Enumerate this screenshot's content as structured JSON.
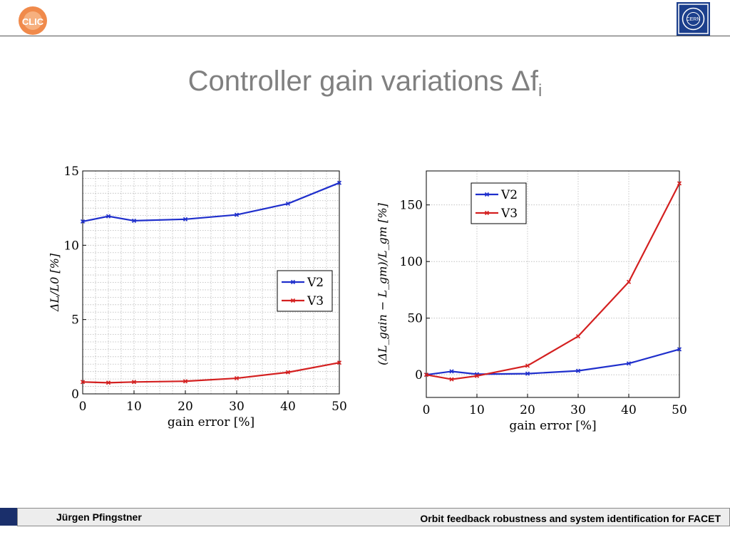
{
  "header": {
    "title_main": "Controller gain variations Δf",
    "title_sub": "i",
    "logo_left_text": "CLIC",
    "logo_right_text": "CERN"
  },
  "footer": {
    "author": "Jürgen Pfingstner",
    "talk_title": "Orbit feedback robustness and system identification for FACET"
  },
  "colors": {
    "V2": "#1f2fcc",
    "V3": "#d42020",
    "footer_accent": "#1a2f6b",
    "title": "#808080"
  },
  "chart_data": [
    {
      "type": "line",
      "xlabel": "gain error [%]",
      "ylabel": "ΔL/L0 [%]",
      "x": [
        0,
        5,
        10,
        20,
        30,
        40,
        50
      ],
      "xticks": [
        0,
        10,
        20,
        30,
        40,
        50
      ],
      "yticks": [
        0,
        5,
        10,
        15
      ],
      "xlim": [
        0,
        50
      ],
      "ylim": [
        0,
        15
      ],
      "grid": "dotted, minor",
      "legend_position": "center-right",
      "series": [
        {
          "name": "V2",
          "color": "#1f2fcc",
          "values": [
            11.6,
            11.95,
            11.65,
            11.75,
            12.05,
            12.8,
            14.2
          ]
        },
        {
          "name": "V3",
          "color": "#d42020",
          "values": [
            0.8,
            0.75,
            0.8,
            0.85,
            1.05,
            1.45,
            2.1
          ]
        }
      ]
    },
    {
      "type": "line",
      "xlabel": "gain error [%]",
      "ylabel": "(ΔL_gain − L_gm)/L_gm [%]",
      "x": [
        0,
        5,
        10,
        20,
        30,
        40,
        50
      ],
      "xticks": [
        0,
        10,
        20,
        30,
        40,
        50
      ],
      "yticks": [
        0,
        50,
        100,
        150
      ],
      "xlim": [
        0,
        50
      ],
      "ylim": [
        -20,
        180
      ],
      "grid": "dotted, major",
      "legend_position": "top-left",
      "series": [
        {
          "name": "V2",
          "color": "#1f2fcc",
          "values": [
            0,
            3,
            0.5,
            1,
            3.5,
            10,
            22.5
          ]
        },
        {
          "name": "V3",
          "color": "#d42020",
          "values": [
            0,
            -4,
            -1,
            8,
            34,
            82,
            169
          ]
        }
      ]
    }
  ]
}
